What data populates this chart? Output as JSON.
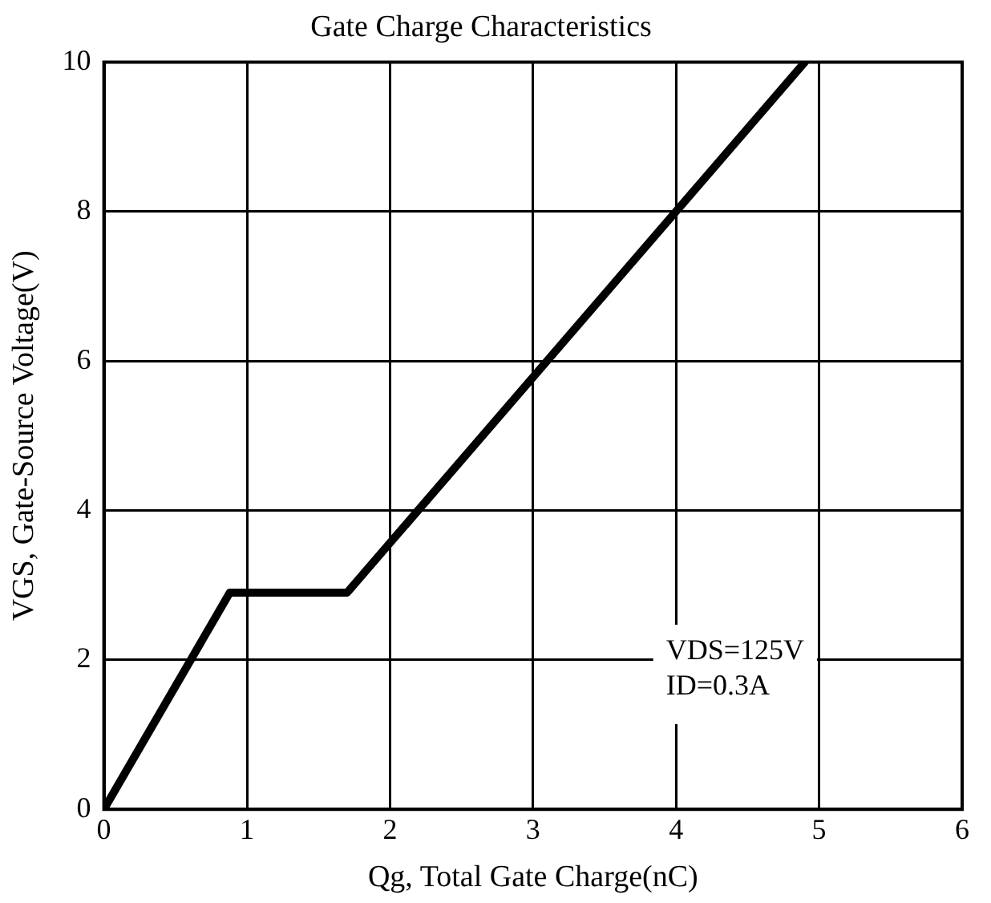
{
  "chart_data": {
    "type": "line",
    "title": "Gate Charge Characteristics",
    "xlabel": "Qg, Total Gate Charge(nC)",
    "ylabel": "VGS, Gate-Source Voltage(V)",
    "x": [
      0,
      0.88,
      1.7,
      4.9
    ],
    "series": [
      {
        "color": "#000000",
        "values": [
          0,
          2.9,
          2.9,
          10
        ]
      }
    ],
    "xlim": [
      0,
      6
    ],
    "xticks": [
      0,
      1,
      2,
      3,
      4,
      5,
      6
    ],
    "ylim": [
      0,
      10
    ],
    "yticks": [
      0,
      2,
      4,
      6,
      8,
      10
    ],
    "grid": true,
    "legend": false,
    "marker": "none",
    "line_style": "solid",
    "annotations": [
      "VDS=125V",
      "ID=0.3A"
    ]
  }
}
